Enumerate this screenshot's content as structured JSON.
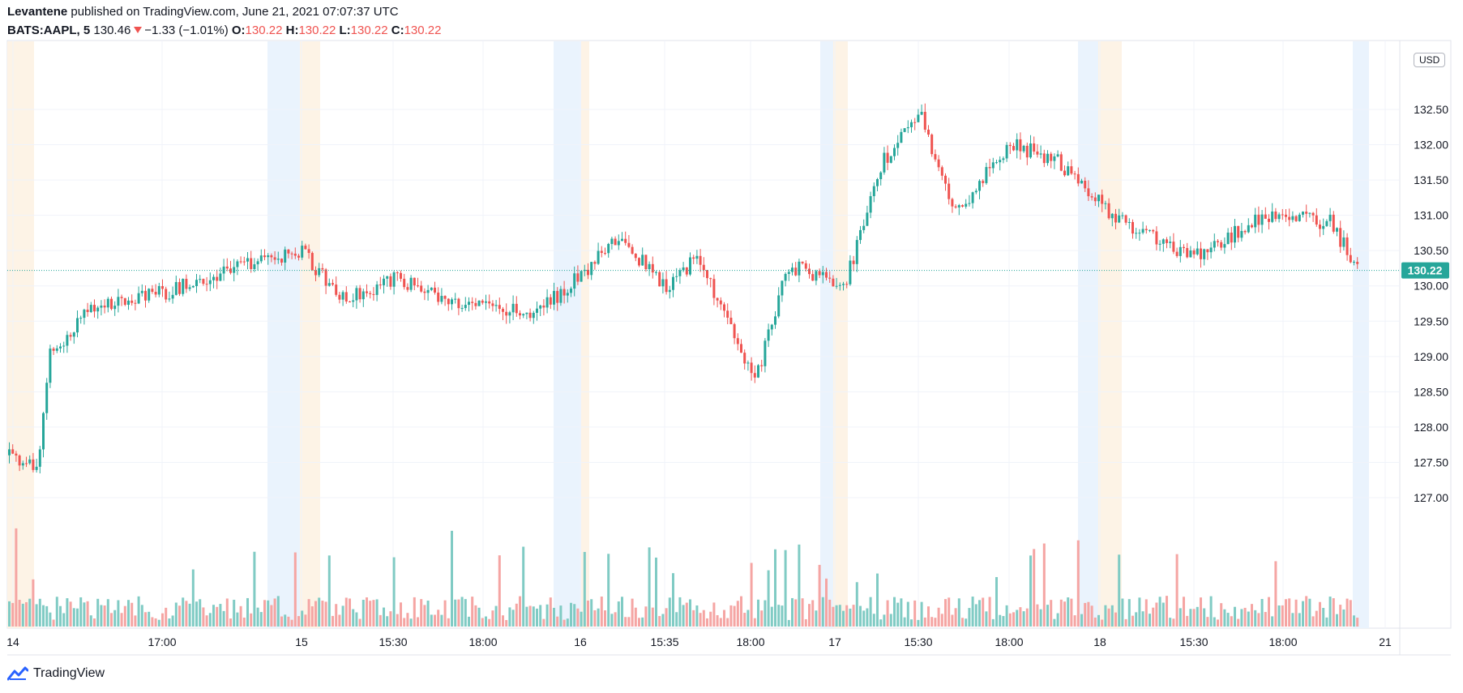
{
  "header": {
    "author": "Levantene",
    "published_text": "published on TradingView.com, June 21, 2021 07:07:37 UTC",
    "symbol": "BATS:AAPL, 5",
    "last": "130.46",
    "change": "−1.33 (−1.01%)",
    "o_label": "O:",
    "o_value": "130.22",
    "h_label": "H:",
    "h_value": "130.22",
    "l_label": "L:",
    "l_value": "130.22",
    "c_label": "C:",
    "c_value": "130.22"
  },
  "currency_label": "USD",
  "price_tag": "130.22",
  "footer": {
    "brand": "TradingView"
  },
  "colors": {
    "up": "#26a69a",
    "down": "#ef5350",
    "vol_up": "#80cbc4",
    "vol_down": "#f5a5a3",
    "premarket": "#eaf3fd",
    "afterhours": "#fdf3e6",
    "grid": "#f0f3fa",
    "price_line": "#26a69a"
  },
  "chart_data": {
    "type": "candlestick",
    "title": "",
    "xlabel": "",
    "ylabel": "",
    "y_axis_side": "right",
    "y_ticks": [
      "132.50",
      "132.00",
      "131.50",
      "131.00",
      "130.50",
      "130.00",
      "129.50",
      "129.00",
      "128.50",
      "128.00",
      "127.50",
      "127.00"
    ],
    "ylim": [
      126.6,
      133.1
    ],
    "x_ticks": [
      "14",
      "17:00",
      "15",
      "15:30",
      "18:00",
      "16",
      "15:35",
      "18:00",
      "17",
      "15:30",
      "18:00",
      "18",
      "15:30",
      "18:00",
      "21"
    ],
    "grid": true,
    "volume_bars": true,
    "last_price": 130.22,
    "price_path": [
      {
        "t": "June 14 pre",
        "v": 127.6
      },
      {
        "t": "June 14 open",
        "v": 127.4
      },
      {
        "t": "June 14",
        "v": 129.0
      },
      {
        "t": "June 14",
        "v": 129.7
      },
      {
        "t": "June 14 17:00",
        "v": 129.9
      },
      {
        "t": "June 14",
        "v": 130.1
      },
      {
        "t": "June 14 close",
        "v": 130.4
      },
      {
        "t": "June 15 open",
        "v": 130.5
      },
      {
        "t": "June 15 15:30",
        "v": 129.8
      },
      {
        "t": "June 15",
        "v": 130.1
      },
      {
        "t": "June 15 18:00",
        "v": 129.8
      },
      {
        "t": "June 15 close",
        "v": 129.6
      },
      {
        "t": "June 16 open",
        "v": 130.3
      },
      {
        "t": "June 16 15:35",
        "v": 130.7
      },
      {
        "t": "June 16",
        "v": 130.0
      },
      {
        "t": "June 16",
        "v": 130.4
      },
      {
        "t": "June 16 18:00",
        "v": 128.6
      },
      {
        "t": "June 16 close",
        "v": 130.3
      },
      {
        "t": "June 17 open",
        "v": 130.0
      },
      {
        "t": "June 17",
        "v": 131.8
      },
      {
        "t": "June 17 15:30",
        "v": 132.4
      },
      {
        "t": "June 17",
        "v": 131.0
      },
      {
        "t": "June 17 18:00",
        "v": 132.0
      },
      {
        "t": "June 17 close",
        "v": 131.8
      },
      {
        "t": "June 18 open",
        "v": 131.0
      },
      {
        "t": "June 18 15:30",
        "v": 130.4
      },
      {
        "t": "June 18",
        "v": 131.0
      },
      {
        "t": "June 18 18:00",
        "v": 130.9
      },
      {
        "t": "June 18 close",
        "v": 130.22
      }
    ]
  }
}
